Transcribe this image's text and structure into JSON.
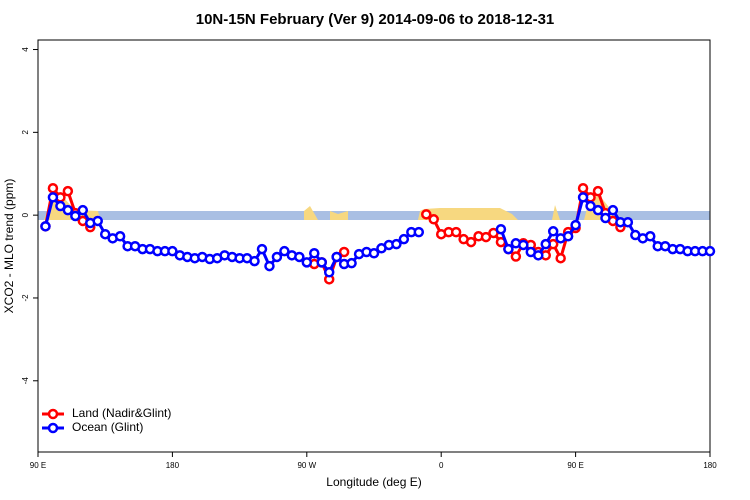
{
  "chart_data": {
    "type": "line",
    "title": "10N-15N February (Ver 9)   2014-09-06 to 2018-12-31",
    "x_label": "Longitude (deg E)",
    "y_label": "XCO2 - MLO trend (ppm)",
    "xlim": [
      90,
      540
    ],
    "ylim": [
      -5.72,
      4.23
    ],
    "xticks": [
      {
        "value": 90,
        "label": "90 E"
      },
      180,
      {
        "value": 270,
        "label": "90 W"
      },
      {
        "value": 360,
        "label": "0"
      },
      {
        "value": 450,
        "label": "90 E"
      },
      {
        "value": 540,
        "label": "180"
      }
    ],
    "yticks": [
      -4,
      -2,
      0,
      2,
      4
    ],
    "legend": "bottom-left",
    "series": [
      {
        "name": "Land (Nadir&Glint)",
        "color": "#ff0000",
        "x": [
          95,
          100,
          105,
          110,
          115,
          120,
          125,
          130,
          275,
          280,
          285,
          290,
          295,
          300,
          350,
          355,
          360,
          365,
          370,
          375,
          380,
          385,
          390,
          395,
          400,
          405,
          410,
          415,
          420,
          425,
          430,
          435,
          440,
          445,
          450,
          455,
          460,
          465,
          470,
          475,
          480
        ],
        "values": [
          -0.27,
          0.65,
          0.43,
          0.58,
          0.05,
          -0.14,
          -0.29,
          null,
          -1.18,
          -1.14,
          -1.55,
          -1.01,
          -0.89,
          null,
          0.02,
          -0.1,
          -0.46,
          -0.41,
          -0.41,
          -0.58,
          -0.65,
          -0.51,
          -0.53,
          -0.43,
          -0.65,
          -0.82,
          -1.0,
          -0.68,
          -0.72,
          -0.89,
          -0.97,
          -0.7,
          -1.04,
          -0.41,
          -0.31,
          0.65,
          0.43,
          0.58,
          0.05,
          -0.14,
          -0.29
        ]
      },
      {
        "name": "Ocean (Glint)",
        "color": "#0000ff",
        "x": [
          95,
          100,
          105,
          110,
          115,
          120,
          125,
          130,
          135,
          140,
          145,
          150,
          155,
          160,
          165,
          170,
          175,
          180,
          185,
          190,
          195,
          200,
          205,
          210,
          215,
          220,
          225,
          230,
          235,
          240,
          245,
          250,
          255,
          260,
          265,
          270,
          275,
          280,
          285,
          290,
          295,
          300,
          305,
          310,
          315,
          320,
          325,
          330,
          335,
          340,
          345,
          350,
          400,
          405,
          410,
          415,
          420,
          425,
          430,
          435,
          440,
          445,
          450,
          455,
          460,
          465,
          470,
          475,
          480,
          485,
          490,
          495,
          500,
          505,
          510,
          515,
          520,
          525,
          530,
          535,
          540
        ],
        "values": [
          -0.27,
          0.43,
          0.22,
          0.12,
          -0.02,
          0.12,
          -0.19,
          -0.14,
          -0.46,
          -0.56,
          -0.51,
          -0.75,
          -0.75,
          -0.82,
          -0.82,
          -0.87,
          -0.87,
          -0.87,
          -0.97,
          -1.01,
          -1.04,
          -1.01,
          -1.06,
          -1.04,
          -0.97,
          -1.01,
          -1.04,
          -1.04,
          -1.11,
          -0.82,
          -1.23,
          -1.01,
          -0.87,
          -0.97,
          -1.01,
          -1.14,
          -0.92,
          -1.14,
          -1.38,
          -1.01,
          -1.18,
          -1.16,
          -0.94,
          -0.89,
          -0.92,
          -0.8,
          -0.72,
          -0.7,
          -0.58,
          -0.41,
          -0.41,
          null,
          -0.34,
          -0.82,
          -0.68,
          -0.72,
          -0.89,
          -0.97,
          -0.7,
          -0.39,
          -0.56,
          -0.51,
          -0.24,
          0.43,
          0.22,
          0.12,
          -0.07,
          0.12,
          -0.17,
          -0.17,
          -0.48,
          -0.56,
          -0.51,
          -0.75,
          -0.75,
          -0.82,
          -0.82,
          -0.87,
          -0.87,
          -0.87,
          -0.87
        ]
      }
    ]
  }
}
